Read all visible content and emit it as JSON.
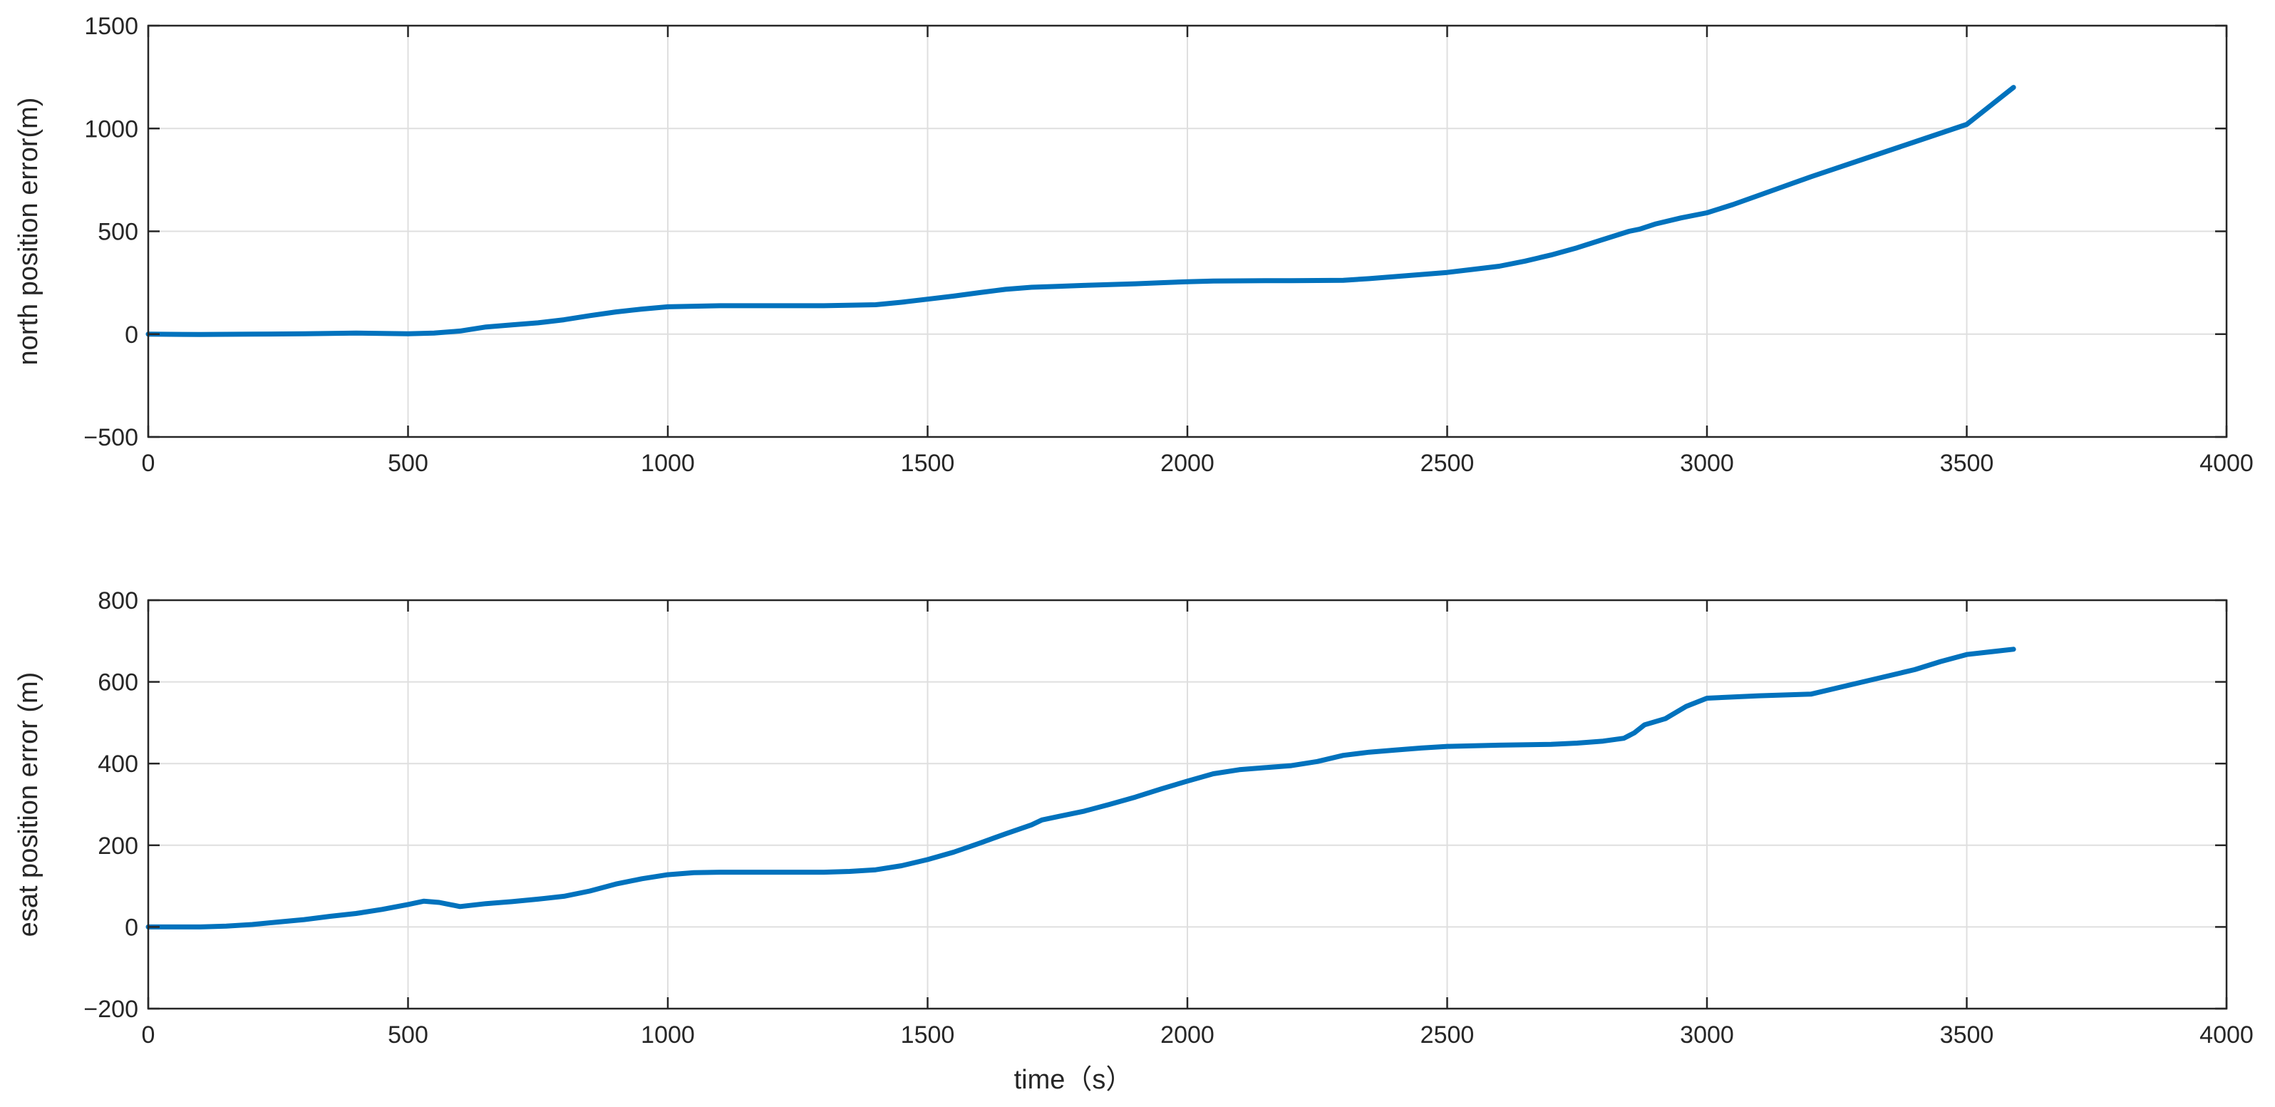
{
  "chart_data": [
    {
      "type": "line",
      "title": "",
      "xlabel": "",
      "ylabel": "north position error(m)",
      "xlim": [
        0,
        4000
      ],
      "ylim": [
        -500,
        1500
      ],
      "xticks": [
        "0",
        "500",
        "1000",
        "1500",
        "2000",
        "2500",
        "3000",
        "3500",
        "4000"
      ],
      "yticks": [
        "−500",
        "0",
        "500",
        "1000",
        "1500"
      ],
      "grid": true,
      "series": [
        {
          "color": "#0072BD",
          "x": [
            0,
            100,
            200,
            300,
            400,
            500,
            550,
            600,
            650,
            700,
            750,
            800,
            850,
            900,
            950,
            1000,
            1100,
            1200,
            1300,
            1400,
            1450,
            1500,
            1550,
            1600,
            1650,
            1700,
            1750,
            1800,
            1850,
            1900,
            1950,
            2000,
            2050,
            2100,
            2150,
            2200,
            2250,
            2300,
            2350,
            2400,
            2450,
            2500,
            2550,
            2600,
            2650,
            2700,
            2750,
            2800,
            2850,
            2870,
            2900,
            2950,
            3000,
            3050,
            3100,
            3150,
            3200,
            3300,
            3400,
            3500,
            3590
          ],
          "y": [
            0,
            -2,
            0,
            2,
            5,
            2,
            5,
            15,
            35,
            45,
            55,
            70,
            90,
            108,
            122,
            133,
            138,
            138,
            138,
            143,
            155,
            170,
            185,
            202,
            218,
            228,
            232,
            237,
            241,
            245,
            250,
            255,
            258,
            259,
            260,
            260,
            261,
            262,
            270,
            280,
            290,
            300,
            315,
            330,
            355,
            385,
            420,
            460,
            500,
            510,
            535,
            565,
            590,
            630,
            675,
            720,
            765,
            850,
            935,
            1020,
            1200
          ]
        }
      ]
    },
    {
      "type": "line",
      "title": "",
      "xlabel": "time（s）",
      "ylabel": "esat position error (m)",
      "xlim": [
        0,
        4000
      ],
      "ylim": [
        -200,
        800
      ],
      "xticks": [
        "0",
        "500",
        "1000",
        "1500",
        "2000",
        "2500",
        "3000",
        "3500",
        "4000"
      ],
      "yticks": [
        "−200",
        "0",
        "200",
        "400",
        "600",
        "800"
      ],
      "grid": true,
      "series": [
        {
          "color": "#0072BD",
          "x": [
            0,
            100,
            150,
            200,
            250,
            300,
            350,
            400,
            450,
            500,
            530,
            560,
            600,
            650,
            700,
            750,
            800,
            850,
            900,
            950,
            1000,
            1050,
            1100,
            1200,
            1300,
            1350,
            1400,
            1450,
            1500,
            1550,
            1600,
            1650,
            1700,
            1720,
            1750,
            1800,
            1850,
            1900,
            1950,
            2000,
            2050,
            2100,
            2150,
            2200,
            2250,
            2300,
            2350,
            2400,
            2450,
            2500,
            2600,
            2700,
            2750,
            2800,
            2840,
            2860,
            2880,
            2920,
            2960,
            3000,
            3100,
            3200,
            3300,
            3400,
            3450,
            3500,
            3590
          ],
          "y": [
            0,
            0,
            2,
            6,
            12,
            18,
            26,
            33,
            43,
            55,
            63,
            60,
            50,
            57,
            62,
            68,
            75,
            88,
            105,
            118,
            128,
            133,
            134,
            134,
            134,
            136,
            140,
            150,
            165,
            183,
            205,
            228,
            250,
            262,
            270,
            283,
            300,
            318,
            338,
            357,
            375,
            385,
            390,
            395,
            405,
            420,
            428,
            433,
            438,
            442,
            445,
            447,
            450,
            455,
            462,
            475,
            495,
            510,
            540,
            560,
            566,
            570,
            600,
            630,
            650,
            667,
            680
          ]
        }
      ]
    }
  ]
}
